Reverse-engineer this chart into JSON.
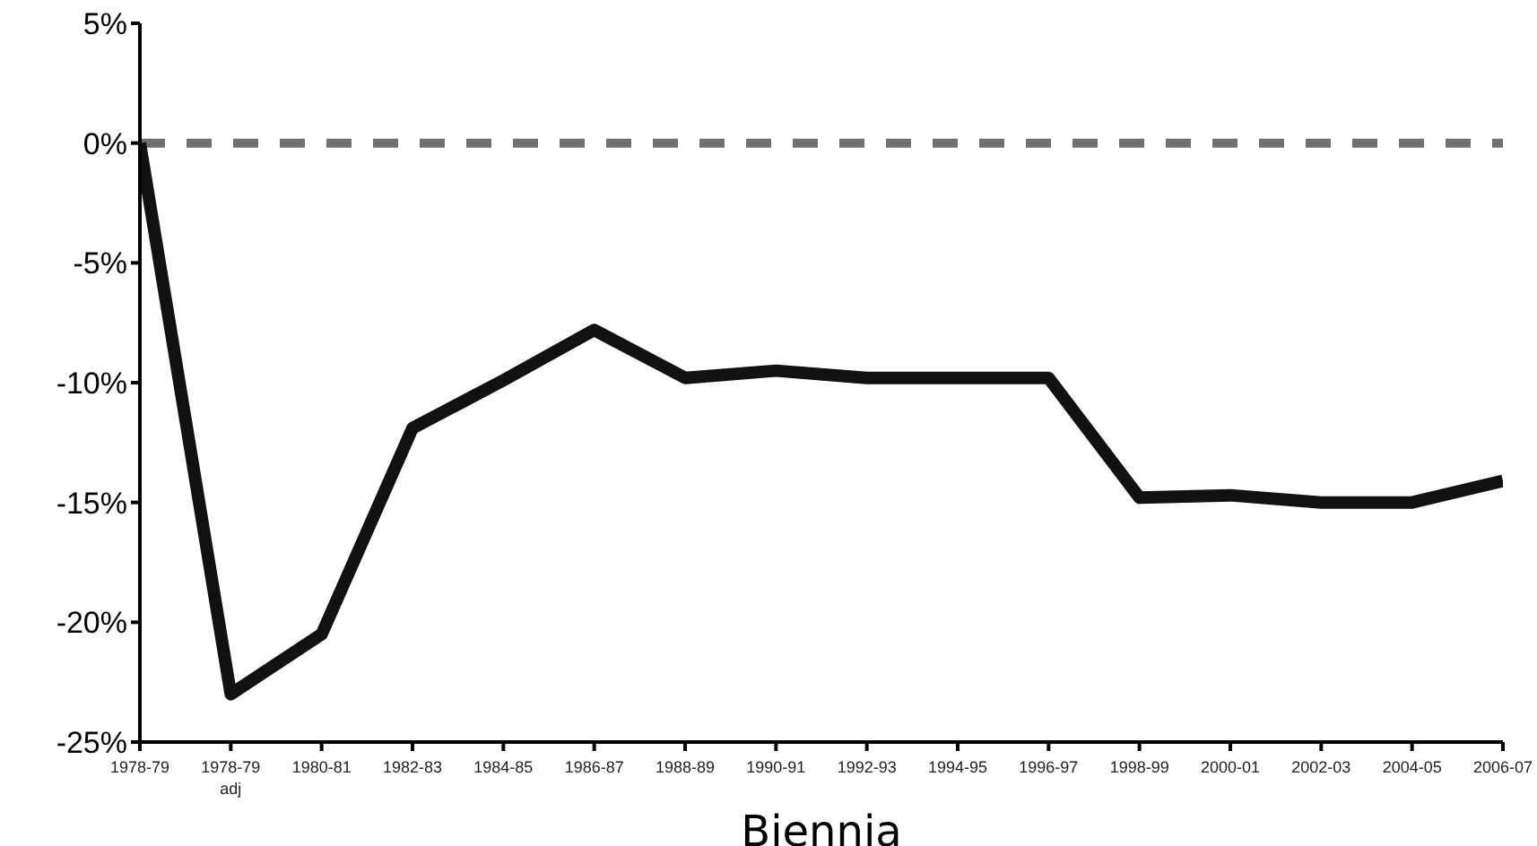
{
  "chart_data": {
    "type": "line",
    "xlabel": "Biennia",
    "categories": [
      "1978-79",
      "1978-79\nadj",
      "1980-81",
      "1982-83",
      "1984-85",
      "1986-87",
      "1988-89",
      "1990-91",
      "1992-93",
      "1994-95",
      "1996-97",
      "1998-99",
      "2000-01",
      "2002-03",
      "2004-05",
      "2006-07"
    ],
    "series": [
      {
        "color": "#111111",
        "values": [
          0,
          -23,
          -20.5,
          -11.9,
          -9.9,
          -7.8,
          -9.8,
          -9.5,
          -9.8,
          -9.8,
          -9.8,
          -14.8,
          -14.7,
          -15,
          -15,
          -14.1
        ]
      }
    ],
    "ylim": [
      -25,
      5
    ],
    "yticks": [
      {
        "value": -25,
        "label": "-25%"
      },
      {
        "value": -20,
        "label": "-20%"
      },
      {
        "value": -15,
        "label": "-15%"
      },
      {
        "value": -10,
        "label": "-10%"
      },
      {
        "value": -5,
        "label": "-5%"
      },
      {
        "value": 0,
        "label": "0%"
      },
      {
        "value": 5,
        "label": "5%"
      }
    ],
    "ref_lines": [
      {
        "axis": "y",
        "value": 0,
        "color": "#707070",
        "line_style": "dashed"
      }
    ],
    "grid": false,
    "legend": false,
    "marker": "none",
    "line_style": "solid"
  }
}
